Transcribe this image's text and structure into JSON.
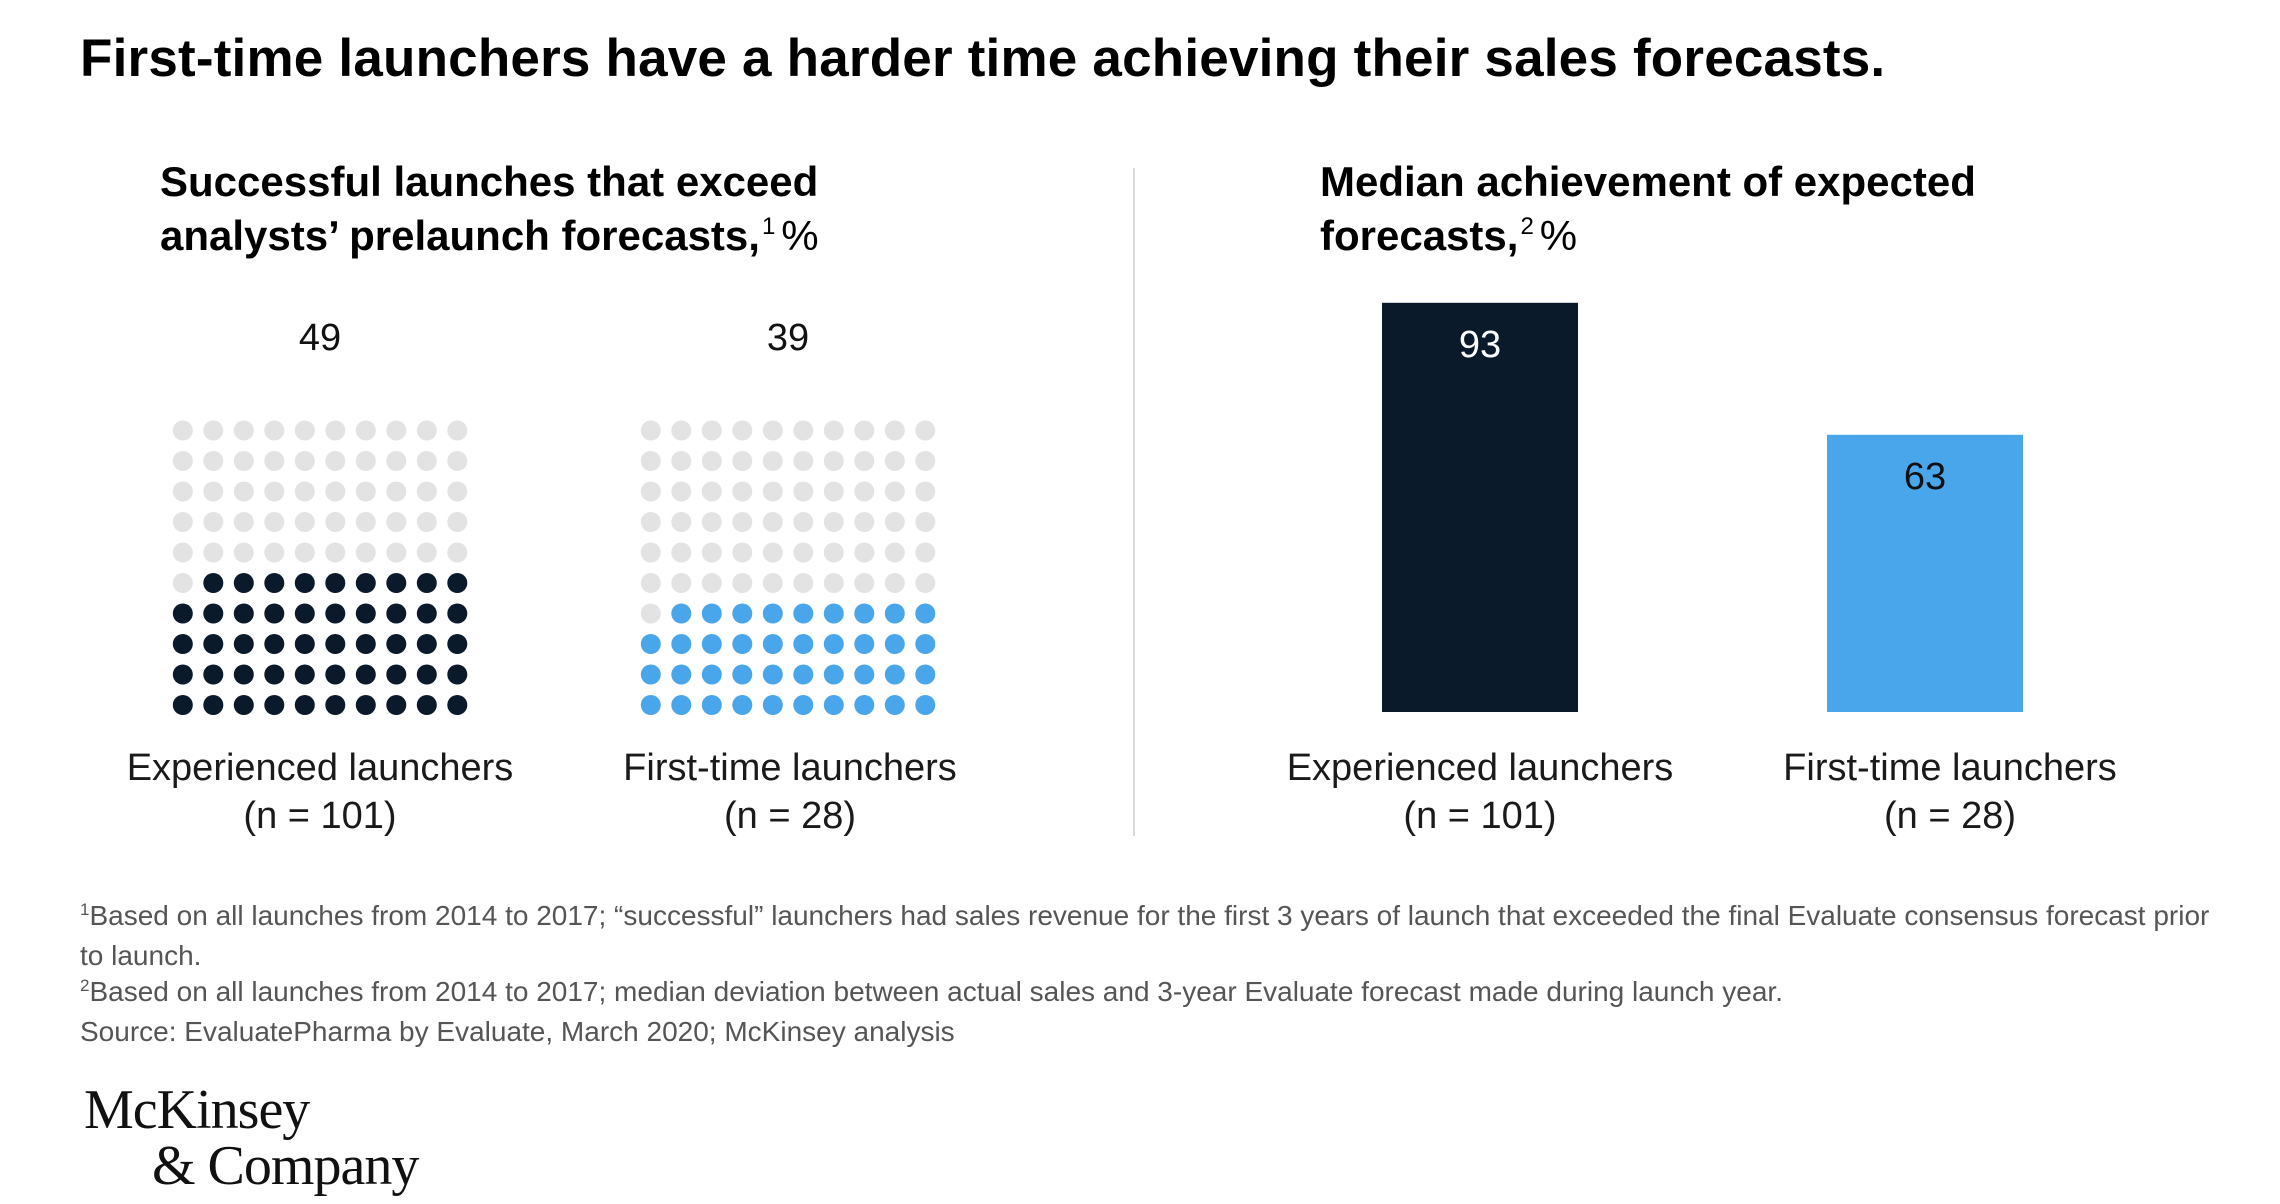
{
  "title": "First-time launchers have a harder time achieving their sales forecasts.",
  "colors": {
    "dark_navy": "#0b1a2a",
    "light_blue": "#4aa6ea",
    "empty_dot": "#e3e3e3",
    "divider": "#d9d9d9",
    "footnote_text": "#555555"
  },
  "chart_data": [
    {
      "type": "waffle",
      "title_line1": "Successful launches that exceed",
      "title_line2": "analysts’ prelaunch forecasts,",
      "title_footnote": "1",
      "unit": "%",
      "grid": {
        "rows": 10,
        "cols": 10
      },
      "categories": [
        {
          "label": "Experienced launchers",
          "sample": "(n = 101)",
          "value": 49,
          "color": "#0b1a2a"
        },
        {
          "label": "First-time launchers",
          "sample": "(n = 28)",
          "value": 39,
          "color": "#4aa6ea"
        }
      ]
    },
    {
      "type": "bar",
      "title_line1": "Median achievement of expected",
      "title_line2": "forecasts,",
      "title_footnote": "2",
      "unit": "%",
      "ylim": [
        0,
        100
      ],
      "categories": [
        {
          "label": "Experienced launchers",
          "sample": "(n = 101)",
          "value": 93,
          "color": "#0b1a2a"
        },
        {
          "label": "First-time launchers",
          "sample": "(n = 28)",
          "value": 63,
          "color": "#4aa6ea"
        }
      ]
    }
  ],
  "footnotes": [
    {
      "marker": "1",
      "text": "Based on all launches from 2014 to 2017; “successful” launchers had sales revenue for the first 3 years of launch that exceeded the final Evaluate consensus forecast prior to launch."
    },
    {
      "marker": "2",
      "text": "Based on all launches from 2014 to 2017; median deviation between actual sales and 3-year Evaluate forecast made during launch year."
    }
  ],
  "source": "Source: EvaluatePharma by Evaluate, March 2020; McKinsey analysis",
  "logo": {
    "line1": "McKinsey",
    "line2": "& Company"
  }
}
